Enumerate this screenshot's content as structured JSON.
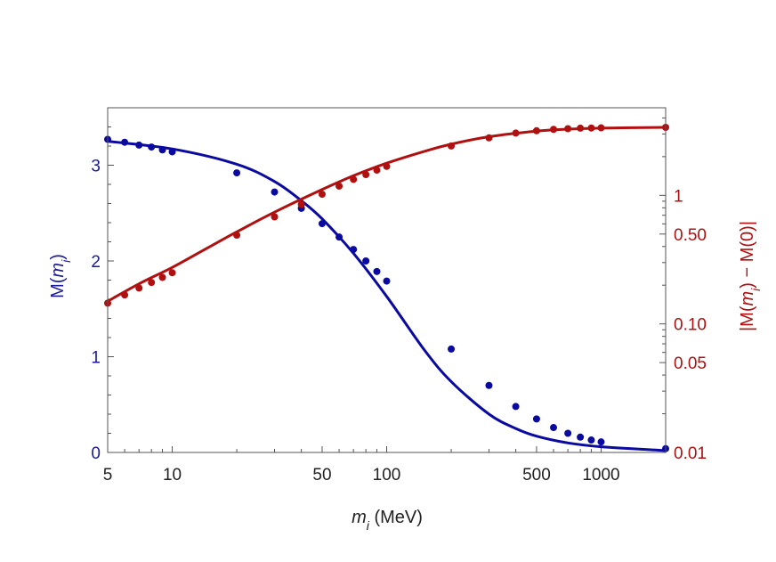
{
  "chart_data": {
    "type": "scatter",
    "title": "",
    "x_axis": {
      "label_var": "m",
      "label_sub": "i",
      "label_unit": " (MeV)",
      "scale": "log",
      "range": [
        5,
        2000
      ],
      "ticks": [
        5,
        10,
        50,
        100,
        500,
        1000
      ],
      "tick_labels": [
        "5",
        "10",
        "50",
        "100",
        "500",
        "1000"
      ]
    },
    "y_left": {
      "label_pre": "M(",
      "label_var": "m",
      "label_sub": "i",
      "label_post": ")",
      "scale": "linear",
      "range": [
        0,
        3.6
      ],
      "ticks": [
        0,
        1,
        2,
        3
      ],
      "tick_labels": [
        "0",
        "1",
        "2",
        "3"
      ],
      "color": "#1a1a9a"
    },
    "y_right": {
      "label_pre": "|M(",
      "label_var": "m",
      "label_sub": "i",
      "label_post": ") − M(0)|",
      "scale": "log",
      "range": [
        0.01,
        4.8
      ],
      "ticks": [
        0.01,
        0.05,
        0.1,
        0.5,
        1
      ],
      "tick_labels": [
        "0.01",
        "0.05",
        "0.10",
        "0.50",
        "1"
      ],
      "color": "#b01010"
    },
    "series": [
      {
        "axis": "left",
        "color": "#0a0aa0",
        "points": [
          [
            5,
            3.27
          ],
          [
            6,
            3.24
          ],
          [
            7,
            3.21
          ],
          [
            8,
            3.19
          ],
          [
            9,
            3.16
          ],
          [
            10,
            3.14
          ],
          [
            20,
            2.92
          ],
          [
            30,
            2.72
          ],
          [
            40,
            2.55
          ],
          [
            50,
            2.39
          ],
          [
            60,
            2.25
          ],
          [
            70,
            2.12
          ],
          [
            80,
            2.0
          ],
          [
            90,
            1.89
          ],
          [
            100,
            1.79
          ],
          [
            200,
            1.08
          ],
          [
            300,
            0.7
          ],
          [
            400,
            0.48
          ],
          [
            500,
            0.35
          ],
          [
            600,
            0.26
          ],
          [
            700,
            0.2
          ],
          [
            800,
            0.16
          ],
          [
            900,
            0.13
          ],
          [
            1000,
            0.11
          ],
          [
            2000,
            0.04
          ]
        ],
        "fit": [
          [
            5,
            3.25
          ],
          [
            10,
            3.17
          ],
          [
            20,
            3.01
          ],
          [
            30,
            2.83
          ],
          [
            40,
            2.63
          ],
          [
            50,
            2.44
          ],
          [
            70,
            2.08
          ],
          [
            100,
            1.63
          ],
          [
            150,
            1.07
          ],
          [
            200,
            0.74
          ],
          [
            300,
            0.4
          ],
          [
            400,
            0.25
          ],
          [
            500,
            0.17
          ],
          [
            700,
            0.1
          ],
          [
            1000,
            0.06
          ],
          [
            2000,
            0.02
          ]
        ]
      },
      {
        "axis": "right",
        "color": "#b01010",
        "points": [
          [
            5,
            0.145
          ],
          [
            6,
            0.168
          ],
          [
            7,
            0.19
          ],
          [
            8,
            0.21
          ],
          [
            9,
            0.23
          ],
          [
            10,
            0.25
          ],
          [
            20,
            0.49
          ],
          [
            30,
            0.68
          ],
          [
            40,
            0.85
          ],
          [
            50,
            1.02
          ],
          [
            60,
            1.18
          ],
          [
            70,
            1.33
          ],
          [
            80,
            1.45
          ],
          [
            90,
            1.57
          ],
          [
            100,
            1.68
          ],
          [
            200,
            2.42
          ],
          [
            300,
            2.8
          ],
          [
            400,
            3.05
          ],
          [
            500,
            3.18
          ],
          [
            600,
            3.26
          ],
          [
            700,
            3.3
          ],
          [
            800,
            3.33
          ],
          [
            900,
            3.34
          ],
          [
            1000,
            3.35
          ],
          [
            2000,
            3.38
          ]
        ],
        "fit": [
          [
            5,
            0.15
          ],
          [
            7,
            0.205
          ],
          [
            10,
            0.275
          ],
          [
            15,
            0.4
          ],
          [
            20,
            0.52
          ],
          [
            30,
            0.74
          ],
          [
            50,
            1.11
          ],
          [
            70,
            1.42
          ],
          [
            100,
            1.78
          ],
          [
            150,
            2.2
          ],
          [
            200,
            2.5
          ],
          [
            300,
            2.86
          ],
          [
            500,
            3.16
          ],
          [
            700,
            3.27
          ],
          [
            1000,
            3.33
          ],
          [
            2000,
            3.38
          ]
        ]
      }
    ]
  }
}
